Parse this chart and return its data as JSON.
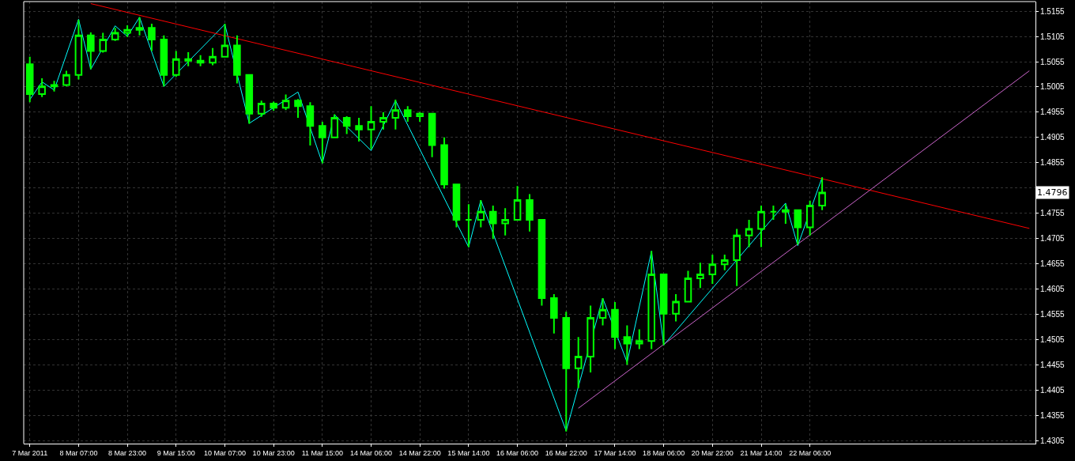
{
  "chart_data": {
    "type": "candlestick",
    "color": "#00ff00",
    "categories": [
      "7 Mar 2011",
      null,
      null,
      null,
      "8 Mar 07:00",
      null,
      null,
      null,
      "8 Mar 23:00",
      null,
      null,
      null,
      "9 Mar 15:00",
      null,
      null,
      null,
      "10 Mar 07:00",
      null,
      null,
      null,
      "10 Mar 23:00",
      null,
      null,
      null,
      "11 Mar 15:00",
      null,
      null,
      null,
      "14 Mar 06:00",
      null,
      null,
      null,
      "14 Mar 22:00",
      null,
      null,
      null,
      "15 Mar 14:00",
      null,
      null,
      null,
      "16 Mar 06:00",
      null,
      null,
      null,
      "16 Mar 22:00",
      null,
      null,
      null,
      "17 Mar 14:00",
      null,
      null,
      null,
      "18 Mar 06:00",
      null,
      null,
      null,
      "20 Mar 22:00",
      null,
      null,
      null,
      "21 Mar 14:00",
      null,
      null,
      null,
      "22 Mar 06:00",
      null,
      null,
      null,
      null,
      null,
      null,
      null,
      null,
      null,
      null,
      null,
      null,
      null,
      null,
      null,
      null,
      null,
      null
    ],
    "ohlc": [
      [
        1.505,
        1.5065,
        1.4975,
        1.4991
      ],
      [
        1.4991,
        1.5022,
        1.4985,
        1.5006
      ],
      [
        1.5006,
        1.5017,
        1.4996,
        1.5009
      ],
      [
        1.5009,
        1.5037,
        1.5006,
        1.5029
      ],
      [
        1.5029,
        1.5138,
        1.502,
        1.5107
      ],
      [
        1.5107,
        1.5113,
        1.504,
        1.5076
      ],
      [
        1.5076,
        1.5112,
        1.5073,
        1.5099
      ],
      [
        1.5099,
        1.5122,
        1.5096,
        1.5112
      ],
      [
        1.5112,
        1.5127,
        1.5104,
        1.5118
      ],
      [
        1.5118,
        1.5143,
        1.5107,
        1.5122
      ],
      [
        1.5122,
        1.513,
        1.5076,
        1.5099
      ],
      [
        1.5099,
        1.5107,
        1.5006,
        1.5029
      ],
      [
        1.5029,
        1.5076,
        1.5025,
        1.506
      ],
      [
        1.506,
        1.5074,
        1.5046,
        1.5057
      ],
      [
        1.5057,
        1.5068,
        1.5046,
        1.5053
      ],
      [
        1.5053,
        1.5082,
        1.5048,
        1.5065
      ],
      [
        1.5065,
        1.513,
        1.5065,
        1.5087
      ],
      [
        1.5087,
        1.5107,
        1.5012,
        1.5029
      ],
      [
        1.5029,
        1.5029,
        1.4932,
        1.4952
      ],
      [
        1.4952,
        1.4978,
        1.4946,
        1.4972
      ],
      [
        1.4972,
        1.4976,
        1.4958,
        1.4964
      ],
      [
        1.4964,
        1.499,
        1.4959,
        1.4978
      ],
      [
        1.4978,
        1.4981,
        1.4944,
        1.4967
      ],
      [
        1.4967,
        1.4975,
        1.4889,
        1.4928
      ],
      [
        1.4928,
        1.4936,
        1.4854,
        1.4905
      ],
      [
        1.4905,
        1.4951,
        1.4905,
        1.4944
      ],
      [
        1.4944,
        1.4947,
        1.4912,
        1.4928
      ],
      [
        1.4928,
        1.4944,
        1.4897,
        1.4921
      ],
      [
        1.4921,
        1.4967,
        1.4882,
        1.4936
      ],
      [
        1.4936,
        1.4955,
        1.4921,
        1.4944
      ],
      [
        1.4944,
        1.498,
        1.4921,
        1.4959
      ],
      [
        1.4959,
        1.4967,
        1.4936,
        1.4947
      ],
      [
        1.4947,
        1.4955,
        1.4936,
        1.4952
      ],
      [
        1.4952,
        1.4952,
        1.4866,
        1.489
      ],
      [
        1.489,
        1.4905,
        1.4804,
        1.4812
      ],
      [
        1.4812,
        1.4812,
        1.4727,
        1.4742
      ],
      [
        1.4742,
        1.4773,
        1.4688,
        1.4742
      ],
      [
        1.4742,
        1.4781,
        1.4727,
        1.4758
      ],
      [
        1.4758,
        1.477,
        1.4704,
        1.4735
      ],
      [
        1.4735,
        1.4765,
        1.4711,
        1.4742
      ],
      [
        1.4742,
        1.4809,
        1.4742,
        1.4781
      ],
      [
        1.4781,
        1.4793,
        1.4719,
        1.4742
      ],
      [
        1.4742,
        1.4742,
        1.4572,
        1.4587
      ],
      [
        1.4587,
        1.4595,
        1.4517,
        1.4548
      ],
      [
        1.4548,
        1.456,
        1.4323,
        1.4448
      ],
      [
        1.4448,
        1.451,
        1.4409,
        1.4471
      ],
      [
        1.4471,
        1.4572,
        1.444,
        1.4548
      ],
      [
        1.4548,
        1.4587,
        1.4533,
        1.4564
      ],
      [
        1.4564,
        1.4579,
        1.4486,
        1.451
      ],
      [
        1.451,
        1.4533,
        1.4455,
        1.4497
      ],
      [
        1.4497,
        1.4525,
        1.4486,
        1.4502
      ],
      [
        1.4502,
        1.468,
        1.4486,
        1.4634
      ],
      [
        1.4634,
        1.4634,
        1.4494,
        1.4556
      ],
      [
        1.4556,
        1.4595,
        1.4541,
        1.458
      ],
      [
        1.458,
        1.4641,
        1.458,
        1.4626
      ],
      [
        1.4626,
        1.4657,
        1.4607,
        1.4634
      ],
      [
        1.4634,
        1.4673,
        1.4615,
        1.4654
      ],
      [
        1.4654,
        1.4673,
        1.4642,
        1.4662
      ],
      [
        1.4662,
        1.4724,
        1.4611,
        1.4711
      ],
      [
        1.4711,
        1.4742,
        1.4688,
        1.4724
      ],
      [
        1.4724,
        1.477,
        1.4688,
        1.4758
      ],
      [
        1.4758,
        1.477,
        1.4742,
        1.4758
      ],
      [
        1.4758,
        1.4773,
        1.4734,
        1.4761
      ],
      [
        1.4761,
        1.4761,
        1.4693,
        1.4727
      ],
      [
        1.4727,
        1.478,
        1.4711,
        1.477
      ],
      [
        1.477,
        1.4826,
        1.4761,
        1.4796
      ],
      null,
      null,
      null,
      null,
      null,
      null,
      null,
      null,
      null,
      null,
      null,
      null,
      null,
      null,
      null,
      null,
      null
    ],
    "series": [
      {
        "type": "line",
        "color": "#00ffff",
        "values": [
          1.498,
          1.5015,
          1.4999,
          null,
          1.5139,
          1.504,
          null,
          1.5126,
          1.5105,
          1.5143,
          null,
          1.5006,
          null,
          null,
          null,
          null,
          1.5129,
          null,
          1.4933,
          null,
          null,
          null,
          1.4995,
          null,
          1.4854,
          1.495,
          null,
          null,
          1.4879,
          null,
          1.4978,
          null,
          null,
          null,
          null,
          null,
          1.4688,
          1.4781,
          null,
          null,
          null,
          null,
          null,
          null,
          1.4324,
          null,
          null,
          1.4587,
          null,
          1.446,
          null,
          1.468,
          1.4494,
          null,
          null,
          null,
          null,
          null,
          null,
          null,
          null,
          null,
          1.4775,
          1.4691,
          null,
          1.4826,
          null,
          null,
          null,
          null,
          null,
          null,
          null,
          null,
          null,
          null,
          null,
          null,
          null,
          null,
          null,
          null,
          null
        ]
      },
      {
        "type": "line",
        "color": "#ff0000",
        "values": [
          null,
          null,
          null,
          null,
          null,
          1.517,
          null,
          null,
          null,
          null,
          null,
          null,
          null,
          null,
          null,
          null,
          null,
          null,
          null,
          null,
          null,
          null,
          null,
          null,
          null,
          null,
          null,
          null,
          null,
          null,
          null,
          null,
          null,
          null,
          null,
          null,
          null,
          null,
          null,
          null,
          null,
          null,
          null,
          null,
          null,
          null,
          null,
          null,
          null,
          null,
          null,
          null,
          null,
          null,
          null,
          null,
          null,
          null,
          null,
          null,
          null,
          null,
          null,
          null,
          null,
          null,
          null,
          null,
          null,
          null,
          null,
          null,
          null,
          null,
          null,
          null,
          null,
          null,
          null,
          null,
          null,
          null,
          1.4725
        ]
      },
      {
        "type": "line",
        "color": "#cc66cc",
        "values": [
          null,
          null,
          null,
          null,
          null,
          null,
          null,
          null,
          null,
          null,
          null,
          null,
          null,
          null,
          null,
          null,
          null,
          null,
          null,
          null,
          null,
          null,
          null,
          null,
          null,
          null,
          null,
          null,
          null,
          null,
          null,
          null,
          null,
          null,
          null,
          null,
          null,
          null,
          null,
          null,
          null,
          null,
          null,
          null,
          null,
          1.4369,
          null,
          null,
          null,
          null,
          null,
          null,
          null,
          null,
          null,
          null,
          null,
          null,
          null,
          null,
          null,
          null,
          null,
          null,
          null,
          null,
          null,
          null,
          null,
          null,
          null,
          null,
          null,
          null,
          null,
          null,
          null,
          null,
          null,
          null,
          null,
          null,
          1.5037
        ]
      }
    ],
    "annotations": [
      {
        "text": "1.4796",
        "y": 1.4796
      }
    ],
    "ylim": [
      1.4299,
      1.5174
    ],
    "yticks": [
      1.4305,
      1.4355,
      1.4405,
      1.4455,
      1.4505,
      1.4555,
      1.4605,
      1.4655,
      1.4705,
      1.4755,
      {
        "value": 1.4805,
        "label": null
      },
      1.4855,
      1.4905,
      1.4955,
      1.5005,
      1.5055,
      1.5105,
      1.5155
    ],
    "grid": true
  }
}
